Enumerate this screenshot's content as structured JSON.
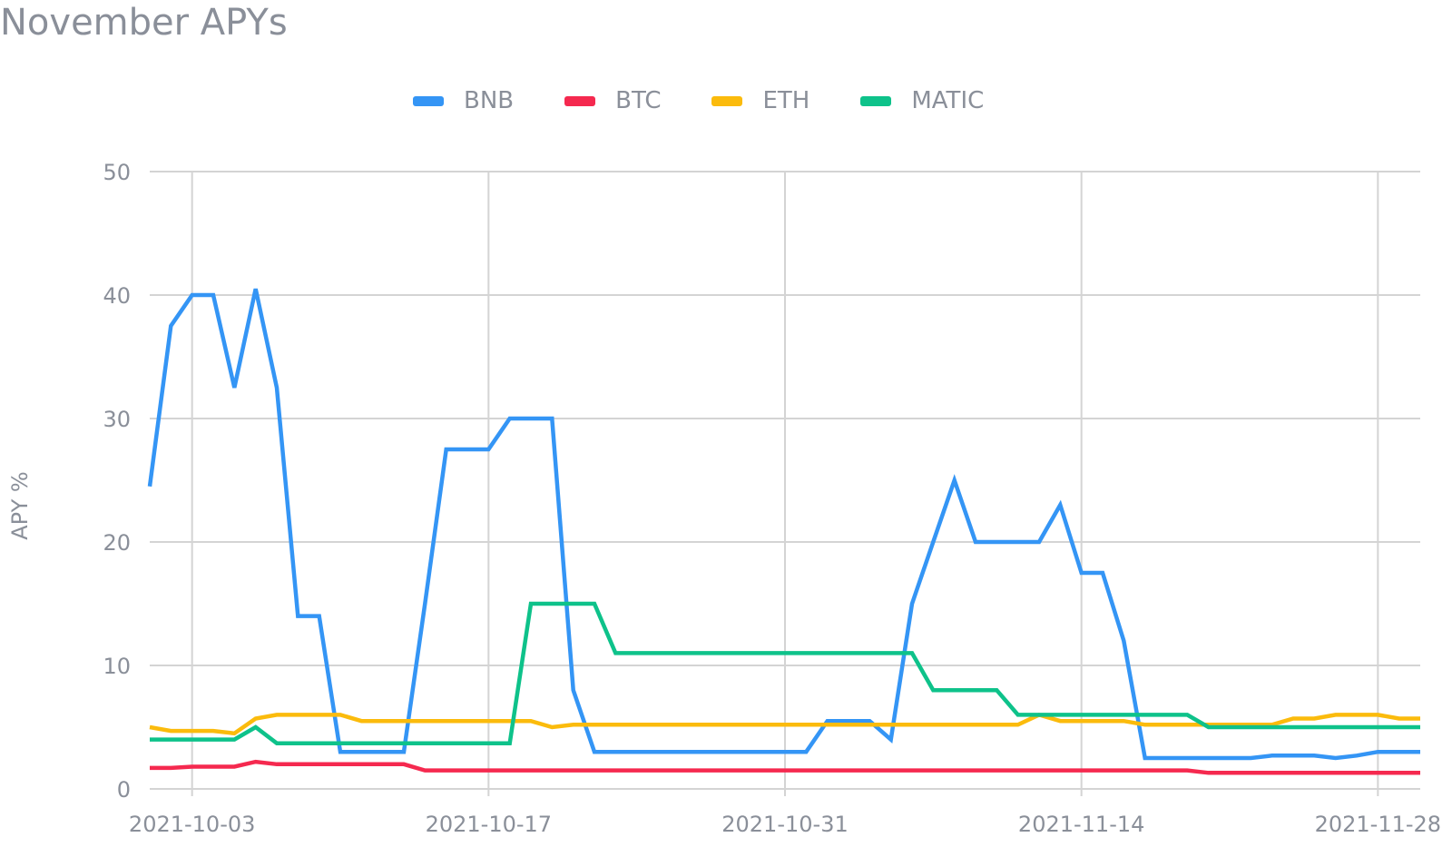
{
  "chart_data": {
    "type": "line",
    "title": "November APYs",
    "ylabel": "APY %",
    "xlabel": "",
    "ylim": [
      0,
      50
    ],
    "yticks": [
      0,
      10,
      20,
      30,
      40,
      50
    ],
    "xticks": [
      "2021-10-03",
      "2021-10-17",
      "2021-10-31",
      "2021-11-14",
      "2021-11-28"
    ],
    "xrange": [
      "2021-10-01",
      "2021-11-30"
    ],
    "grid": true,
    "legend_position": "top-center",
    "x": [
      "2021-10-01",
      "2021-10-02",
      "2021-10-03",
      "2021-10-04",
      "2021-10-05",
      "2021-10-06",
      "2021-10-07",
      "2021-10-08",
      "2021-10-09",
      "2021-10-10",
      "2021-10-11",
      "2021-10-12",
      "2021-10-13",
      "2021-10-14",
      "2021-10-15",
      "2021-10-16",
      "2021-10-17",
      "2021-10-18",
      "2021-10-19",
      "2021-10-20",
      "2021-10-21",
      "2021-10-22",
      "2021-10-23",
      "2021-10-24",
      "2021-10-25",
      "2021-10-26",
      "2021-10-27",
      "2021-10-28",
      "2021-10-29",
      "2021-10-30",
      "2021-10-31",
      "2021-11-01",
      "2021-11-02",
      "2021-11-03",
      "2021-11-04",
      "2021-11-05",
      "2021-11-06",
      "2021-11-07",
      "2021-11-08",
      "2021-11-09",
      "2021-11-10",
      "2021-11-11",
      "2021-11-12",
      "2021-11-13",
      "2021-11-14",
      "2021-11-15",
      "2021-11-16",
      "2021-11-17",
      "2021-11-18",
      "2021-11-19",
      "2021-11-20",
      "2021-11-21",
      "2021-11-22",
      "2021-11-23",
      "2021-11-24",
      "2021-11-25",
      "2021-11-26",
      "2021-11-27",
      "2021-11-28",
      "2021-11-29",
      "2021-11-30"
    ],
    "series": [
      {
        "name": "BNB",
        "color": "#3495f5",
        "values": [
          24.5,
          37.5,
          40,
          40,
          32.5,
          40.5,
          32.5,
          14,
          14,
          3,
          3,
          3,
          3,
          15,
          27.5,
          27.5,
          27.5,
          30,
          30,
          30,
          8,
          3,
          3,
          3,
          3,
          3,
          3,
          3,
          3,
          3,
          3,
          3,
          5.5,
          5.5,
          5.5,
          4,
          15,
          20,
          25,
          20,
          20,
          20,
          20,
          23,
          17.5,
          17.5,
          12,
          2.5,
          2.5,
          2.5,
          2.5,
          2.5,
          2.5,
          2.7,
          2.7,
          2.7,
          2.5,
          2.7,
          3,
          3,
          3
        ]
      },
      {
        "name": "BTC",
        "color": "#f5294f",
        "values": [
          1.7,
          1.7,
          1.8,
          1.8,
          1.8,
          2.2,
          2,
          2,
          2,
          2,
          2,
          2,
          2,
          1.5,
          1.5,
          1.5,
          1.5,
          1.5,
          1.5,
          1.5,
          1.5,
          1.5,
          1.5,
          1.5,
          1.5,
          1.5,
          1.5,
          1.5,
          1.5,
          1.5,
          1.5,
          1.5,
          1.5,
          1.5,
          1.5,
          1.5,
          1.5,
          1.5,
          1.5,
          1.5,
          1.5,
          1.5,
          1.5,
          1.5,
          1.5,
          1.5,
          1.5,
          1.5,
          1.5,
          1.5,
          1.3,
          1.3,
          1.3,
          1.3,
          1.3,
          1.3,
          1.3,
          1.3,
          1.3,
          1.3,
          1.3
        ]
      },
      {
        "name": "ETH",
        "color": "#fbbb0c",
        "values": [
          5,
          4.7,
          4.7,
          4.7,
          4.5,
          5.7,
          6,
          6,
          6,
          6,
          5.5,
          5.5,
          5.5,
          5.5,
          5.5,
          5.5,
          5.5,
          5.5,
          5.5,
          5,
          5.2,
          5.2,
          5.2,
          5.2,
          5.2,
          5.2,
          5.2,
          5.2,
          5.2,
          5.2,
          5.2,
          5.2,
          5.2,
          5.2,
          5.2,
          5.2,
          5.2,
          5.2,
          5.2,
          5.2,
          5.2,
          5.2,
          6,
          5.5,
          5.5,
          5.5,
          5.5,
          5.2,
          5.2,
          5.2,
          5.2,
          5.2,
          5.2,
          5.2,
          5.7,
          5.7,
          6,
          6,
          6,
          5.7,
          5.7
        ]
      },
      {
        "name": "MATIC",
        "color": "#0ec28a",
        "values": [
          4,
          4,
          4,
          4,
          4,
          5,
          3.7,
          3.7,
          3.7,
          3.7,
          3.7,
          3.7,
          3.7,
          3.7,
          3.7,
          3.7,
          3.7,
          3.7,
          15,
          15,
          15,
          15,
          11,
          11,
          11,
          11,
          11,
          11,
          11,
          11,
          11,
          11,
          11,
          11,
          11,
          11,
          11,
          8,
          8,
          8,
          8,
          6,
          6,
          6,
          6,
          6,
          6,
          6,
          6,
          6,
          5,
          5,
          5,
          5,
          5,
          5,
          5,
          5,
          5,
          5,
          5
        ]
      }
    ]
  }
}
